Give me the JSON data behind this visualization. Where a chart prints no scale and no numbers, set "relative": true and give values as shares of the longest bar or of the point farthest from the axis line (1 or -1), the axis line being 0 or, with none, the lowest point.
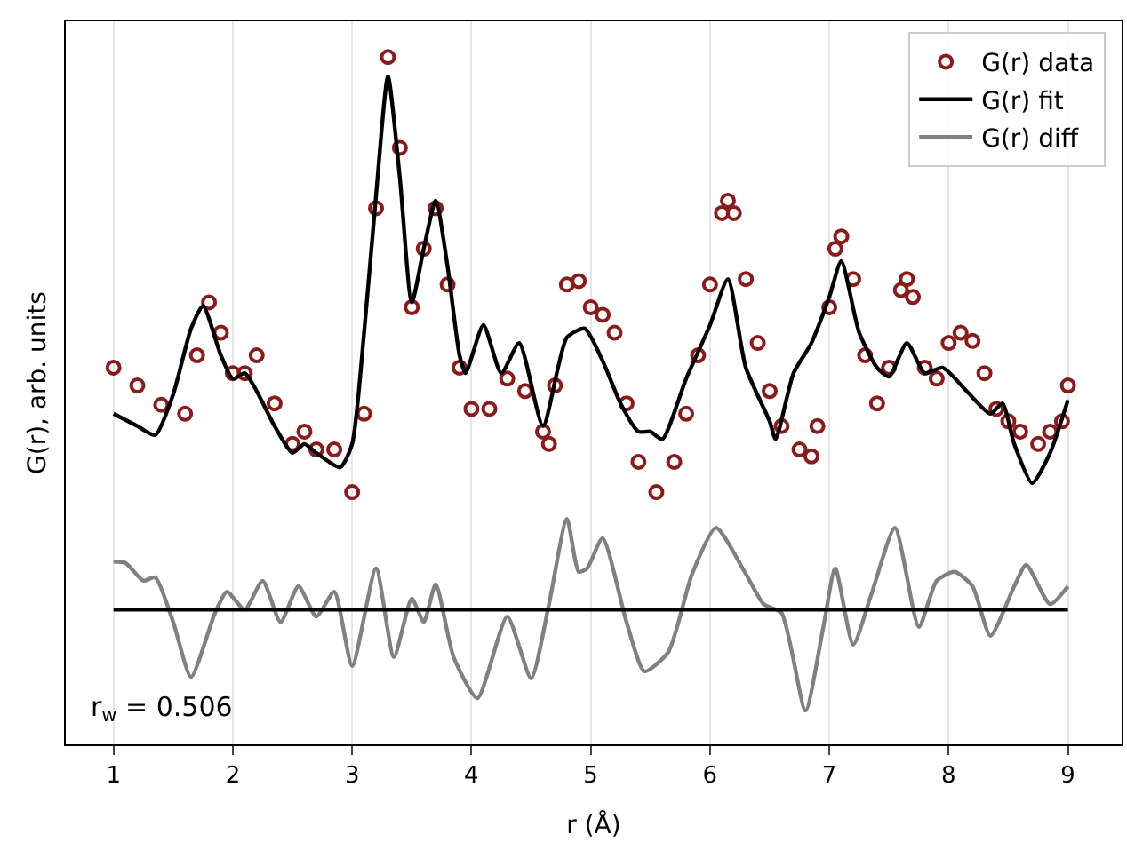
{
  "chart_data": {
    "type": "line",
    "relative": true,
    "xlabel": "r (Å)",
    "ylabel": "G(r), arb. units",
    "xlim": [
      0.6,
      9.45
    ],
    "xticks": [
      1,
      2,
      3,
      4,
      5,
      6,
      7,
      8,
      9
    ],
    "grid": "x",
    "legend": "top right",
    "annotations": [
      "r$_{w}$ = 0.506"
    ],
    "series": [
      {
        "name": "G(r) data",
        "type": "scatter",
        "marker": "circle",
        "color": "#8b1a1a",
        "x": [
          1.0,
          1.2,
          1.4,
          1.6,
          1.7,
          1.8,
          1.9,
          2.0,
          2.1,
          2.2,
          2.35,
          2.5,
          2.6,
          2.7,
          2.85,
          3.0,
          3.1,
          3.2,
          3.3,
          3.4,
          3.5,
          3.6,
          3.7,
          3.8,
          3.9,
          4.0,
          4.15,
          4.3,
          4.45,
          4.6,
          4.65,
          4.7,
          4.8,
          4.9,
          5.0,
          5.1,
          5.2,
          5.3,
          5.4,
          5.55,
          5.7,
          5.8,
          5.9,
          6.0,
          6.1,
          6.15,
          6.2,
          6.3,
          6.4,
          6.5,
          6.6,
          6.75,
          6.85,
          6.9,
          7.0,
          7.05,
          7.1,
          7.2,
          7.3,
          7.4,
          7.5,
          7.6,
          7.65,
          7.7,
          7.8,
          7.9,
          8.0,
          8.1,
          8.2,
          8.3,
          8.4,
          8.5,
          8.6,
          8.75,
          8.85,
          8.95,
          9.0
        ],
        "values": [
          0.548,
          0.522,
          0.494,
          0.481,
          0.566,
          0.643,
          0.599,
          0.54,
          0.54,
          0.566,
          0.496,
          0.437,
          0.455,
          0.429,
          0.429,
          0.367,
          0.481,
          0.78,
          1.0,
          0.868,
          0.636,
          0.721,
          0.78,
          0.669,
          0.548,
          0.488,
          0.488,
          0.532,
          0.514,
          0.455,
          0.437,
          0.522,
          0.669,
          0.674,
          0.636,
          0.625,
          0.599,
          0.496,
          0.411,
          0.367,
          0.411,
          0.481,
          0.566,
          0.669,
          0.773,
          0.791,
          0.773,
          0.677,
          0.584,
          0.514,
          0.463,
          0.429,
          0.419,
          0.463,
          0.636,
          0.721,
          0.739,
          0.677,
          0.566,
          0.496,
          0.548,
          0.661,
          0.677,
          0.651,
          0.548,
          0.532,
          0.584,
          0.599,
          0.587,
          0.54,
          0.488,
          0.47,
          0.455,
          0.437,
          0.455,
          0.47,
          0.522
        ]
      },
      {
        "name": "G(r) fit",
        "color": "#000000",
        "x": [
          1.0,
          1.2,
          1.35,
          1.5,
          1.65,
          1.75,
          1.9,
          2.0,
          2.1,
          2.2,
          2.35,
          2.5,
          2.6,
          2.7,
          2.9,
          3.0,
          3.1,
          3.2,
          3.3,
          3.4,
          3.5,
          3.6,
          3.7,
          3.8,
          3.9,
          3.95,
          4.1,
          4.25,
          4.4,
          4.6,
          4.8,
          4.95,
          5.1,
          5.25,
          5.4,
          5.5,
          5.6,
          5.8,
          6.0,
          6.15,
          6.3,
          6.5,
          6.55,
          6.7,
          6.85,
          7.0,
          7.1,
          7.25,
          7.4,
          7.5,
          7.65,
          7.8,
          7.95,
          8.15,
          8.35,
          8.45,
          8.55,
          8.7,
          8.85,
          9.0
        ],
        "values": [
          0.481,
          0.463,
          0.45,
          0.509,
          0.605,
          0.638,
          0.566,
          0.532,
          0.54,
          0.514,
          0.463,
          0.424,
          0.437,
          0.424,
          0.403,
          0.437,
          0.599,
          0.798,
          0.972,
          0.824,
          0.643,
          0.721,
          0.791,
          0.695,
          0.566,
          0.54,
          0.61,
          0.54,
          0.584,
          0.463,
          0.592,
          0.605,
          0.558,
          0.496,
          0.455,
          0.455,
          0.444,
          0.532,
          0.61,
          0.677,
          0.548,
          0.47,
          0.444,
          0.54,
          0.584,
          0.651,
          0.703,
          0.599,
          0.548,
          0.535,
          0.584,
          0.54,
          0.548,
          0.514,
          0.481,
          0.496,
          0.437,
          0.38,
          0.424,
          0.501
        ]
      },
      {
        "name": "G(r) diff",
        "color": "#808080",
        "x": [
          1.0,
          1.1,
          1.25,
          1.35,
          1.5,
          1.65,
          1.85,
          1.95,
          2.1,
          2.25,
          2.4,
          2.55,
          2.7,
          2.85,
          3.0,
          3.2,
          3.35,
          3.5,
          3.6,
          3.7,
          3.85,
          4.05,
          4.3,
          4.5,
          4.65,
          4.8,
          4.9,
          4.97,
          5.1,
          5.3,
          5.45,
          5.65,
          5.85,
          6.05,
          6.3,
          6.45,
          6.6,
          6.8,
          6.95,
          7.05,
          7.2,
          7.35,
          7.55,
          7.75,
          7.9,
          8.05,
          8.2,
          8.35,
          8.55,
          8.65,
          8.85,
          9.0
        ],
        "values": [
          0.266,
          0.264,
          0.238,
          0.243,
          0.178,
          0.098,
          0.191,
          0.222,
          0.196,
          0.238,
          0.178,
          0.23,
          0.186,
          0.222,
          0.114,
          0.256,
          0.127,
          0.212,
          0.178,
          0.233,
          0.127,
          0.067,
          0.186,
          0.096,
          0.204,
          0.328,
          0.251,
          0.256,
          0.3,
          0.178,
          0.106,
          0.134,
          0.248,
          0.315,
          0.248,
          0.204,
          0.191,
          0.049,
          0.171,
          0.256,
          0.145,
          0.217,
          0.315,
          0.171,
          0.238,
          0.251,
          0.23,
          0.158,
          0.23,
          0.261,
          0.204,
          0.23
        ]
      },
      {
        "color": "#000000",
        "x": [
          1.0,
          9.0
        ],
        "values": [
          0.196,
          0.196
        ]
      }
    ]
  }
}
